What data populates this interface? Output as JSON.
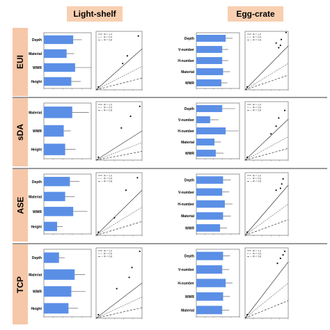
{
  "headers": {
    "left": "Light-shelf",
    "right": "Egg-crate"
  },
  "colors": {
    "bar": "#5b8fe6",
    "header_bg": "#f8cfb1",
    "row_label_bg": "#f6c7a8"
  },
  "legend_entries": [
    "R² = 1.0",
    "R² = 0.9",
    "R² = 0.8"
  ],
  "rows": [
    {
      "label": "EUI",
      "light_shelf": {
        "bars": {
          "type": "bar",
          "orientation": "horizontal",
          "categories": [
            "Depth",
            "Material",
            "WWR",
            "Height"
          ],
          "values": [
            0.62,
            0.48,
            0.66,
            0.58
          ],
          "errors": [
            0.18,
            0.16,
            0.36,
            0.2
          ],
          "xlim": [
            0,
            1
          ]
        },
        "scatter": {
          "type": "scatter",
          "points": [
            [
              0.05,
              0.05
            ],
            [
              0.58,
              0.45
            ],
            [
              0.68,
              0.58
            ],
            [
              0.92,
              0.92
            ]
          ],
          "lines": [
            0.7,
            0.4,
            0.2
          ]
        }
      },
      "egg_crate": {
        "bars": {
          "type": "bar",
          "orientation": "horizontal",
          "categories": [
            "Depth",
            "V-number",
            "H-number",
            "Material",
            "WWR"
          ],
          "values": [
            0.68,
            0.6,
            0.6,
            0.62,
            0.58
          ],
          "errors": [
            0.16,
            0.14,
            0.14,
            0.16,
            0.14
          ],
          "xlim": [
            0,
            1
          ]
        },
        "scatter": {
          "type": "scatter",
          "points": [
            [
              0.05,
              0.05
            ],
            [
              0.72,
              0.8
            ],
            [
              0.78,
              0.72
            ],
            [
              0.82,
              0.76
            ],
            [
              0.84,
              0.86
            ],
            [
              0.95,
              0.98
            ]
          ],
          "lines": [
            0.75,
            0.45,
            0.25
          ]
        }
      }
    },
    {
      "label": "sDA",
      "light_shelf": {
        "bars": {
          "type": "bar",
          "orientation": "horizontal",
          "categories": [
            "Material",
            "WWR",
            "Height"
          ],
          "values": [
            0.6,
            0.42,
            0.45
          ],
          "errors": [
            0.35,
            0.15,
            0.22
          ],
          "xlim": [
            0,
            1
          ]
        },
        "scatter": {
          "type": "scatter",
          "points": [
            [
              0.05,
              0.05
            ],
            [
              0.55,
              0.55
            ],
            [
              0.75,
              0.75
            ],
            [
              0.95,
              0.92
            ]
          ],
          "lines": [
            0.5,
            0.3,
            0.15
          ]
        }
      },
      "egg_crate": {
        "bars": {
          "type": "bar",
          "orientation": "horizontal",
          "categories": [
            "Depth",
            "V-number",
            "H-number",
            "Material",
            "WWR"
          ],
          "values": [
            0.6,
            0.32,
            0.68,
            0.42,
            0.45
          ],
          "errors": [
            0.3,
            0.2,
            0.3,
            0.15,
            0.18
          ],
          "xlim": [
            0,
            1
          ]
        },
        "scatter": {
          "type": "scatter",
          "points": [
            [
              0.05,
              0.05
            ],
            [
              0.6,
              0.45
            ],
            [
              0.72,
              0.58
            ],
            [
              0.78,
              0.72
            ],
            [
              0.92,
              0.85
            ]
          ],
          "lines": [
            0.7,
            0.4,
            0.2
          ]
        }
      }
    },
    {
      "label": "ASE",
      "light_shelf": {
        "bars": {
          "type": "bar",
          "orientation": "horizontal",
          "categories": [
            "Depth",
            "Material",
            "WWR",
            "Height"
          ],
          "values": [
            0.55,
            0.45,
            0.62,
            0.28
          ],
          "errors": [
            0.2,
            0.2,
            0.3,
            0.12
          ],
          "xlim": [
            0,
            1
          ]
        },
        "scatter": {
          "type": "scatter",
          "points": [
            [
              0.05,
              0.05
            ],
            [
              0.4,
              0.28
            ],
            [
              0.65,
              0.72
            ],
            [
              0.9,
              0.92
            ]
          ],
          "lines": [
            0.72,
            0.45,
            0.22
          ]
        }
      },
      "egg_crate": {
        "bars": {
          "type": "bar",
          "orientation": "horizontal",
          "categories": [
            "Depth",
            "V-number",
            "H-number",
            "Material",
            "WWR"
          ],
          "values": [
            0.62,
            0.6,
            0.66,
            0.62,
            0.55
          ],
          "errors": [
            0.18,
            0.16,
            0.18,
            0.18,
            0.16
          ],
          "xlim": [
            0,
            1
          ]
        },
        "scatter": {
          "type": "scatter",
          "points": [
            [
              0.05,
              0.05
            ],
            [
              0.72,
              0.72
            ],
            [
              0.82,
              0.75
            ],
            [
              0.85,
              0.82
            ],
            [
              0.88,
              0.9
            ]
          ],
          "lines": [
            0.8,
            0.5,
            0.25
          ]
        }
      }
    },
    {
      "label": "TCP",
      "light_shelf": {
        "bars": {
          "type": "bar",
          "orientation": "horizontal",
          "categories": [
            "Depth",
            "Material",
            "WWR",
            "Height"
          ],
          "values": [
            0.32,
            0.65,
            0.58,
            0.52
          ],
          "errors": [
            0.12,
            0.22,
            0.3,
            0.2
          ],
          "xlim": [
            0,
            1
          ]
        },
        "scatter": {
          "type": "scatter",
          "points": [
            [
              0.05,
              0.05
            ],
            [
              0.45,
              0.42
            ],
            [
              0.72,
              0.58
            ],
            [
              0.78,
              0.72
            ],
            [
              0.95,
              0.95
            ]
          ],
          "lines": [
            0.5,
            0.3,
            0.15
          ]
        }
      },
      "egg_crate": {
        "bars": {
          "type": "bar",
          "orientation": "horizontal",
          "categories": [
            "Depth",
            "V-number",
            "H-number",
            "WWR",
            "Material"
          ],
          "values": [
            0.62,
            0.6,
            0.68,
            0.62,
            0.6
          ],
          "errors": [
            0.16,
            0.16,
            0.16,
            0.16,
            0.16
          ],
          "xlim": [
            0,
            1
          ]
        },
        "scatter": {
          "type": "scatter",
          "points": [
            [
              0.05,
              0.05
            ],
            [
              0.75,
              0.78
            ],
            [
              0.82,
              0.85
            ],
            [
              0.88,
              0.9
            ],
            [
              0.92,
              0.95
            ]
          ],
          "lines": [
            0.8,
            0.5,
            0.25
          ]
        }
      }
    }
  ]
}
